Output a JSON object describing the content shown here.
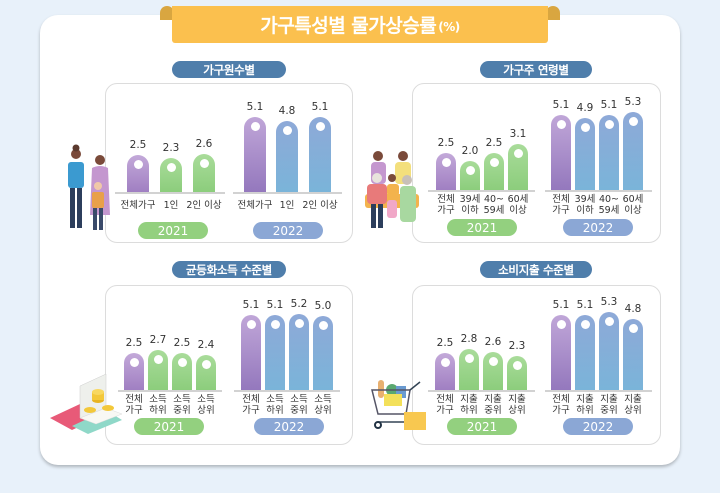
{
  "title": {
    "main": "가구특성별 물가상승률",
    "unit": "(%)"
  },
  "colors": {
    "background": "#e8f1fa",
    "ribbon": "#fbc04e",
    "section_pill": "#4f7eab",
    "bar_2021": "#93d07f",
    "bar_total_2021": "#b193cf",
    "bar_2022": "#85acd8",
    "bar_total_2022": "#a98cc9",
    "year_2021": "#93d07f",
    "year_2022": "#8ba7d5"
  },
  "panels": [
    {
      "title": "가구원수별",
      "illustration": "family-icon",
      "years": [
        "2021",
        "2022"
      ],
      "categories": [
        "전체가구",
        "1인",
        "2인 이상"
      ],
      "values_2021": [
        "2.5",
        "2.3",
        "2.6"
      ],
      "values_2022": [
        "5.1",
        "4.8",
        "5.1"
      ]
    },
    {
      "title": "가구주 연령별",
      "illustration": "multigeneration-family-icon",
      "years": [
        "2021",
        "2022"
      ],
      "categories": [
        "전체\n가구",
        "39세\n이하",
        "40~\n59세",
        "60세\n이상"
      ],
      "values_2021": [
        "2.5",
        "2.0",
        "2.5",
        "3.1"
      ],
      "values_2022": [
        "5.1",
        "4.9",
        "5.1",
        "5.3"
      ]
    },
    {
      "title": "균등화소득 수준별",
      "illustration": "money-coins-icon",
      "years": [
        "2021",
        "2022"
      ],
      "categories": [
        "전체\n가구",
        "소득\n하위",
        "소득\n중위",
        "소득\n상위"
      ],
      "values_2021": [
        "2.5",
        "2.7",
        "2.5",
        "2.4"
      ],
      "values_2022": [
        "5.1",
        "5.1",
        "5.2",
        "5.0"
      ]
    },
    {
      "title": "소비지출 수준별",
      "illustration": "shopping-cart-icon",
      "years": [
        "2021",
        "2022"
      ],
      "categories": [
        "전체\n가구",
        "지출\n하위",
        "지출\n중위",
        "지출\n상위"
      ],
      "values_2021": [
        "2.5",
        "2.8",
        "2.6",
        "2.3"
      ],
      "values_2022": [
        "5.1",
        "5.1",
        "5.3",
        "4.8"
      ]
    }
  ],
  "chart_data": [
    {
      "type": "bar",
      "title": "가구원수별",
      "categories": [
        "전체가구",
        "1인",
        "2인 이상"
      ],
      "series": [
        {
          "name": "2021",
          "values": [
            2.5,
            2.3,
            2.6
          ]
        },
        {
          "name": "2022",
          "values": [
            5.1,
            4.8,
            5.1
          ]
        }
      ],
      "xlabel": "",
      "ylabel": "물가상승률 (%)",
      "ylim": [
        0,
        5.5
      ],
      "grid": false,
      "legend": "bottom (year pills)"
    },
    {
      "type": "bar",
      "title": "가구주 연령별",
      "categories": [
        "전체가구",
        "39세 이하",
        "40~59세",
        "60세 이상"
      ],
      "series": [
        {
          "name": "2021",
          "values": [
            2.5,
            2.0,
            2.5,
            3.1
          ]
        },
        {
          "name": "2022",
          "values": [
            5.1,
            4.9,
            5.1,
            5.3
          ]
        }
      ],
      "xlabel": "",
      "ylabel": "물가상승률 (%)",
      "ylim": [
        0,
        5.5
      ],
      "grid": false,
      "legend": "bottom (year pills)"
    },
    {
      "type": "bar",
      "title": "균등화소득 수준별",
      "categories": [
        "전체가구",
        "소득하위",
        "소득중위",
        "소득상위"
      ],
      "series": [
        {
          "name": "2021",
          "values": [
            2.5,
            2.7,
            2.5,
            2.4
          ]
        },
        {
          "name": "2022",
          "values": [
            5.1,
            5.1,
            5.2,
            5.0
          ]
        }
      ],
      "xlabel": "",
      "ylabel": "물가상승률 (%)",
      "ylim": [
        0,
        5.5
      ],
      "grid": false,
      "legend": "bottom (year pills)"
    },
    {
      "type": "bar",
      "title": "소비지출 수준별",
      "categories": [
        "전체가구",
        "지출하위",
        "지출중위",
        "지출상위"
      ],
      "series": [
        {
          "name": "2021",
          "values": [
            2.5,
            2.8,
            2.6,
            2.3
          ]
        },
        {
          "name": "2022",
          "values": [
            5.1,
            5.1,
            5.3,
            4.8
          ]
        }
      ],
      "xlabel": "",
      "ylabel": "물가상승률 (%)",
      "ylim": [
        0,
        5.5
      ],
      "grid": false,
      "legend": "bottom (year pills)"
    }
  ]
}
